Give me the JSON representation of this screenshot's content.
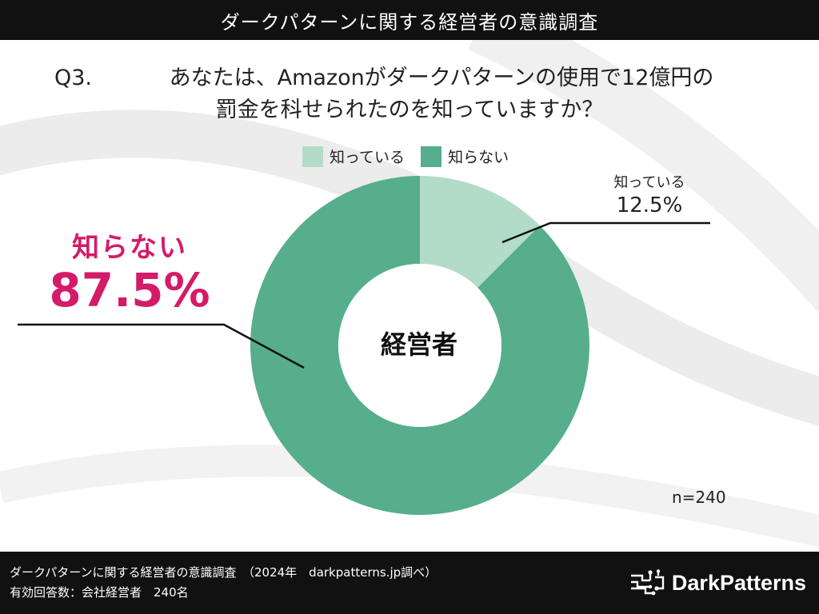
{
  "header": {
    "title": "ダークパターンに関する経営者の意識調査"
  },
  "question": {
    "number": "Q3.",
    "line1": "あなたは、Amazonがダークパターンの使用で12億円の",
    "line2": "罰金を科せられたのを知っていますか？"
  },
  "chart_data": {
    "type": "pie",
    "donut": true,
    "categories": [
      "知っている",
      "知らない"
    ],
    "values": [
      12.5,
      87.5
    ],
    "colors": [
      "#b3dcc8",
      "#56ae8c"
    ],
    "legend_position": "top",
    "center_text": "経営者",
    "data_labels": [
      {
        "category": "知っている",
        "value_text": "12.5%"
      },
      {
        "category": "知らない",
        "value_text": "87.5%"
      }
    ],
    "n_text": "n=240"
  },
  "colors": {
    "highlight": "#d41b6a",
    "header_bg": "#111111"
  },
  "footer": {
    "source_line1": "ダークパターンに関する経営者の意識調査　（2024年　darkpatterns.jp調べ）",
    "source_line2": "有効回答数：会社経営者　240名",
    "brand": "DarkPatterns",
    "brand_icon": "circuit-logo-icon"
  }
}
